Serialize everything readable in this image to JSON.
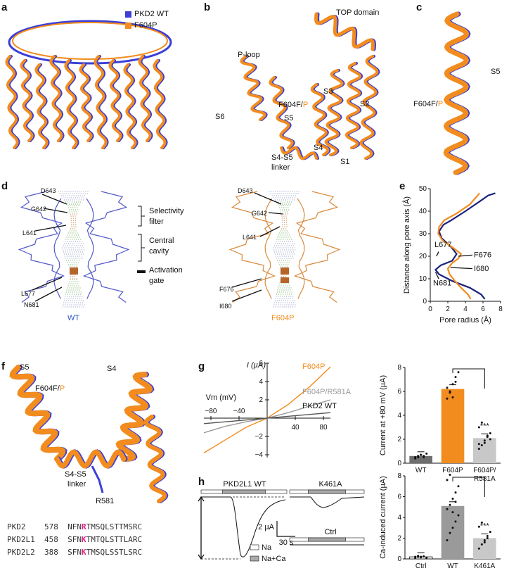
{
  "colors": {
    "wt": "#3b3fd6",
    "f604p": "#f28c1e",
    "orange_text": "#f28c1e",
    "blue_text": "#2a57b8",
    "grey": "#9a9a9a",
    "light_grey": "#c8c8c8",
    "dark_grey": "#6e6e6e",
    "navy": "#1a237e",
    "magenta": "#e0208a"
  },
  "panels": {
    "a": {
      "letter": "a",
      "legend": [
        "PKD2 WT",
        "F604P"
      ]
    },
    "b": {
      "letter": "b",
      "labels": {
        "top": "TOP domain",
        "ploop": "P-loop",
        "s6": "S6",
        "s5": "S5",
        "s3": "S3",
        "s2": "S2",
        "s4": "S4",
        "s1": "S1",
        "s4s5": "S4-S5",
        "linker": "linker",
        "f604": "F604F/",
        "p": "P"
      }
    },
    "c": {
      "letter": "c",
      "labels": {
        "s5": "S5",
        "f604": "F604F/",
        "p": "P"
      }
    },
    "d": {
      "letter": "d",
      "labels": {
        "d643": "D643",
        "g642": "G642",
        "l641": "L641",
        "l677": "L677",
        "n681": "N681",
        "d643b": "D643",
        "g642b": "G642",
        "l641b": "L641",
        "f676": "F676",
        "i680": "I680",
        "selectivity": "Selectivity",
        "filter": "filter",
        "central": "Central",
        "cavity": "cavity",
        "activation": "Activation",
        "gate": "gate",
        "wt": "WT",
        "f604p": "F604P"
      }
    },
    "e": {
      "letter": "e",
      "ylabel": "Distance along pore axis (Å)",
      "xlabel": "Pore radius (Å)",
      "labels": {
        "l677": "L677",
        "n681": "N681",
        "f676": "F676",
        "i680": "I680"
      }
    },
    "f": {
      "letter": "f",
      "labels": {
        "s5": "S5",
        "s4": "S4",
        "f604": "F604F/",
        "p": "P",
        "s4s5": "S4-S5",
        "linker": "linker",
        "r581": "R581"
      },
      "sequences": [
        {
          "name": "PKD2",
          "pos": "578",
          "pre": "NFN",
          "hl": "R",
          "post": "TMSQLSTTMSRC"
        },
        {
          "name": "PKD2L1",
          "pos": "458",
          "pre": "SFN",
          "hl": "K",
          "post": "TMTQLSTTLARC"
        },
        {
          "name": "PKD2L2",
          "pos": "388",
          "pre": "SFN",
          "hl": "K",
          "post": "TMSQLSSTLSRC"
        }
      ]
    },
    "g": {
      "letter": "g",
      "ylabel_iv": "I (µA)",
      "xlabel_iv": "Vm (mV)",
      "curve_labels": {
        "f604p": "F604P",
        "double": "F604P/R581A",
        "wt": "PKD2 WT"
      }
    },
    "h": {
      "letter": "h",
      "labels": {
        "wt": "PKD2L1 WT",
        "k461a": "K461A",
        "ctrl": "Ctrl",
        "scale_i": "2 µA",
        "scale_t": "30 s",
        "legend_na": "Na",
        "legend_naca": "Na+Ca"
      }
    }
  },
  "chart_data": [
    {
      "type": "line",
      "title": "",
      "xlabel": "Pore radius (Å)",
      "ylabel": "Distance along pore axis (Å)",
      "xlim": [
        0,
        8
      ],
      "ylim": [
        0,
        50
      ],
      "xticks": [
        "0",
        "2",
        "4",
        "6",
        "8"
      ],
      "yticks": [
        "0",
        "10",
        "20",
        "30",
        "40",
        "50"
      ],
      "series": [
        {
          "name": "",
          "color": "#1a237e",
          "points": [
            [
              6.2,
              1
            ],
            [
              5.8,
              3
            ],
            [
              4.5,
              6
            ],
            [
              2.5,
              9
            ],
            [
              1.0,
              12
            ],
            [
              0.6,
              14
            ],
            [
              1.2,
              16
            ],
            [
              2.5,
              18
            ],
            [
              3.0,
              21
            ],
            [
              2.4,
              24
            ],
            [
              1.3,
              28
            ],
            [
              1.0,
              31
            ],
            [
              1.5,
              34
            ],
            [
              2.4,
              36
            ],
            [
              4.0,
              40
            ],
            [
              5.5,
              44
            ],
            [
              6.6,
              47
            ],
            [
              7.4,
              48
            ]
          ]
        },
        {
          "name": "",
          "color": "#f28c1e",
          "points": [
            [
              4.6,
              1
            ],
            [
              4.3,
              3
            ],
            [
              3.5,
              6
            ],
            [
              2.8,
              9
            ],
            [
              2.2,
              12
            ],
            [
              2.0,
              14.5
            ],
            [
              2.5,
              17
            ],
            [
              3.2,
              19
            ],
            [
              3.5,
              21
            ],
            [
              2.5,
              24
            ],
            [
              1.4,
              27
            ],
            [
              0.9,
              30
            ],
            [
              1.0,
              33
            ],
            [
              1.6,
              36
            ],
            [
              3.0,
              39
            ],
            [
              4.5,
              43
            ],
            [
              5.4,
              47
            ],
            [
              5.6,
              48
            ]
          ]
        }
      ]
    },
    {
      "type": "line",
      "title": "",
      "xlabel": "Vm (mV)",
      "ylabel": "I (µA)",
      "xlim": [
        -90,
        90
      ],
      "ylim": [
        -4,
        6
      ],
      "xticks": [
        "−80",
        "−40",
        "40",
        "80"
      ],
      "yticks": [
        "−4",
        "−2",
        "2",
        "4",
        "6"
      ],
      "series": [
        {
          "name": "F604P",
          "color": "#f28c1e",
          "points": [
            [
              -90,
              -3.8
            ],
            [
              -60,
              -2.4
            ],
            [
              -30,
              -1.0
            ],
            [
              0,
              0
            ],
            [
              30,
              1.5
            ],
            [
              60,
              3.4
            ],
            [
              90,
              5.6
            ]
          ]
        },
        {
          "name": "F604P/R581A",
          "color": "#9a9a9a",
          "points": [
            [
              -90,
              -1.6
            ],
            [
              -60,
              -0.9
            ],
            [
              -30,
              -0.4
            ],
            [
              0,
              0
            ],
            [
              30,
              0.6
            ],
            [
              60,
              1.3
            ],
            [
              90,
              2.0
            ]
          ]
        },
        {
          "name": "PKD2 WT",
          "color": "#555555",
          "points": [
            [
              -90,
              -0.6
            ],
            [
              -45,
              -0.3
            ],
            [
              0,
              0
            ],
            [
              45,
              0.3
            ],
            [
              90,
              0.6
            ]
          ]
        }
      ]
    },
    {
      "type": "bar",
      "title": "",
      "ylabel": "Current at +80 mV (µA)",
      "ylim": [
        0,
        8
      ],
      "yticks": [
        "0",
        "2",
        "4",
        "6",
        "8"
      ],
      "categories": [
        "WT",
        "F604P",
        "F604P/ R581A"
      ],
      "values": [
        0.6,
        6.2,
        2.1
      ],
      "significance": "***",
      "colors": [
        "#6e6e6e",
        "#f28c1e",
        "#c8c8c8"
      ],
      "points": [
        [
          0.4,
          0.5,
          0.7,
          0.6,
          0.8,
          0.5,
          0.6,
          0.7,
          0.5
        ],
        [
          5.4,
          6.0,
          6.6,
          7.2,
          7.6,
          6.3,
          5.9,
          5.5,
          6.8
        ],
        [
          1.2,
          1.5,
          1.9,
          2.2,
          2.5,
          3.0,
          3.4,
          1.7,
          2.3,
          2.0,
          1.6
        ]
      ]
    },
    {
      "type": "bar",
      "title": "",
      "ylabel": "Ca-induced current (µA)",
      "ylim": [
        0,
        8
      ],
      "yticks": [
        "0",
        "2",
        "4",
        "6",
        "8"
      ],
      "categories": [
        "Ctrl",
        "WT",
        "K461A"
      ],
      "values": [
        0.2,
        5.1,
        2.0
      ],
      "significance": "***",
      "colors": [
        "#ffffff",
        "#9a9a9a",
        "#c8c8c8"
      ],
      "points": [
        [
          0.1,
          0.2,
          0.15,
          0.25,
          0.1,
          0.2,
          0.3,
          0.2
        ],
        [
          1.8,
          2.5,
          3.0,
          3.6,
          4.2,
          4.8,
          5.2,
          5.8,
          6.4,
          7.0,
          7.6,
          8.1,
          4.5,
          5.5
        ],
        [
          1.0,
          1.4,
          1.8,
          2.2,
          2.6,
          3.1,
          3.5,
          1.6,
          2.0
        ]
      ]
    }
  ]
}
